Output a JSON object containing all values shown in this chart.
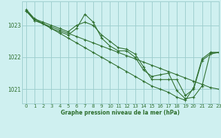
{
  "title": "Graphe pression niveau de la mer (hPa)",
  "bg_color": "#cff0f0",
  "grid_color": "#9ecece",
  "line_color": "#2d6e2d",
  "xlim": [
    -0.5,
    23
  ],
  "ylim": [
    1020.55,
    1023.75
  ],
  "yticks": [
    1021,
    1022,
    1023
  ],
  "xticks": [
    0,
    1,
    2,
    3,
    4,
    5,
    6,
    7,
    8,
    9,
    10,
    11,
    12,
    13,
    14,
    15,
    16,
    17,
    18,
    19,
    20,
    21,
    22,
    23
  ],
  "series": [
    [
      1023.5,
      1023.2,
      1023.1,
      1023.0,
      1022.9,
      1022.8,
      1023.0,
      1023.1,
      1023.0,
      1022.7,
      1022.5,
      1022.3,
      1022.25,
      1022.1,
      1021.7,
      1021.3,
      1021.3,
      1021.3,
      1021.3,
      1020.8,
      1021.0,
      1021.9,
      1022.1,
      1022.15
    ],
    [
      1023.45,
      1023.15,
      1023.05,
      1022.9,
      1022.8,
      1022.7,
      1022.9,
      1023.35,
      1023.1,
      1022.6,
      1022.35,
      1022.2,
      1022.2,
      1022.0,
      1021.6,
      1021.4,
      1021.45,
      1021.5,
      1020.95,
      1020.7,
      1020.75,
      1021.1,
      1022.15,
      1022.15
    ],
    [
      1023.45,
      1023.15,
      1023.05,
      1022.95,
      1022.85,
      1022.75,
      1022.65,
      1022.55,
      1022.45,
      1022.35,
      1022.25,
      1022.15,
      1022.05,
      1021.95,
      1021.85,
      1021.75,
      1021.65,
      1021.55,
      1021.45,
      1021.35,
      1021.25,
      1021.15,
      1021.05,
      1021.0
    ],
    [
      1023.45,
      1023.2,
      1023.05,
      1022.9,
      1022.75,
      1022.6,
      1022.45,
      1022.3,
      1022.15,
      1022.0,
      1021.85,
      1021.7,
      1021.55,
      1021.4,
      1021.25,
      1021.1,
      1021.0,
      1020.9,
      1020.75,
      1020.65,
      1021.05,
      1021.95,
      1022.15,
      1022.15
    ]
  ]
}
